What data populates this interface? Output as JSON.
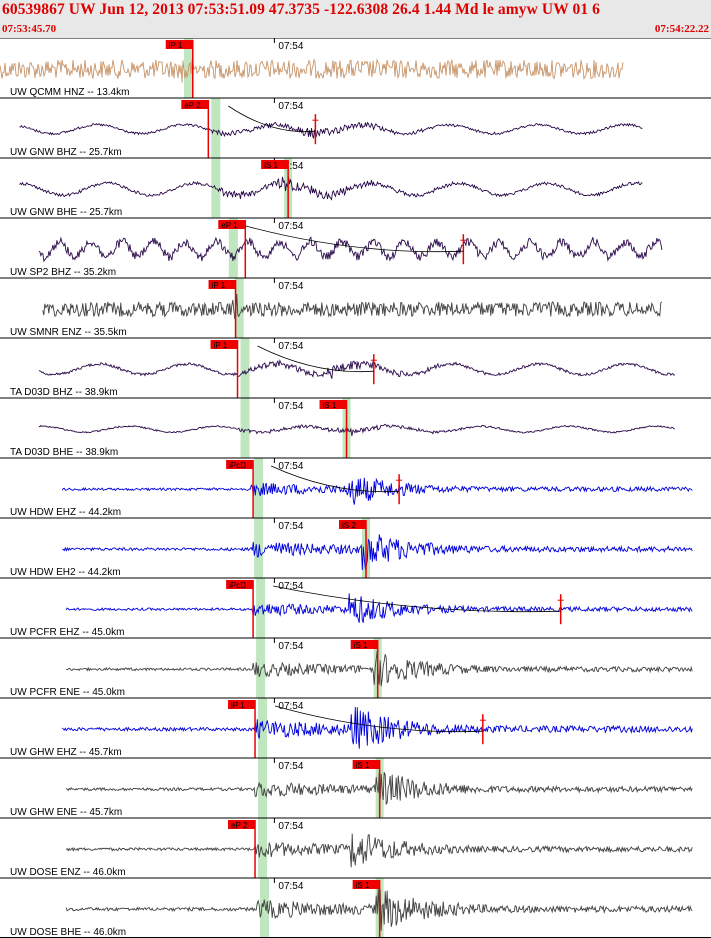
{
  "header": {
    "title": "60539867 UW Jun 12, 2013 07:53:51.09   47.3735 -122.6308 26.4 1.44 Md le amyw UW 01   6",
    "start_time": "07:53:45.70",
    "end_time": "07:54:22.22",
    "minute_tick": "07:54"
  },
  "colors": {
    "header_bg": "#e8e8e8",
    "header_text": "#dd0000",
    "pick": "#ee0000",
    "gap_band": "#bfe6bf",
    "tan": "#c8956a",
    "purple": "#2a0a4a",
    "gray": "#404040",
    "blue": "#0000dd"
  },
  "chart_data": {
    "type": "seismogram",
    "x_range_seconds": [
      0,
      36.52
    ],
    "minute_mark_seconds": 14.3,
    "traces": [
      {
        "label": "UW QCMM HNZ -- 13.4km",
        "color": "tan",
        "style": "noise",
        "t0": 0,
        "t1": 32.0,
        "amp": 0.45,
        "arr": 9.3,
        "picks": [
          {
            "text": "iP 1",
            "t": 9.9
          }
        ]
      },
      {
        "label": "UW GNW BHZ -- 25.7km",
        "color": "purple",
        "style": "swell",
        "t0": 1.0,
        "t1": 33.0,
        "amp": 0.3,
        "arr": 10.7,
        "picks": [
          {
            "text": "eP 2",
            "t": 10.7
          },
          {
            "text": "",
            "t": 16.2
          }
        ]
      },
      {
        "label": "UW GNW BHE -- 25.7km",
        "color": "purple",
        "style": "swell",
        "t0": 1.0,
        "t1": 33.0,
        "amp": 0.4,
        "arr": 10.7,
        "picks": [
          {
            "text": "iS 1",
            "t": 14.8
          }
        ]
      },
      {
        "label": "UW SP2 BHZ -- 35.2km",
        "color": "purple",
        "style": "wiggle",
        "t0": 2.0,
        "t1": 34.0,
        "amp": 0.5,
        "arr": 11.6,
        "picks": [
          {
            "text": "eP 1",
            "t": 12.6
          },
          {
            "text": "",
            "t": 23.8
          }
        ]
      },
      {
        "label": "UW SMNR ENZ -- 35.5km",
        "color": "gray",
        "style": "noise",
        "t0": 2.2,
        "t1": 34.0,
        "amp": 0.35,
        "arr": 11.9,
        "picks": [
          {
            "text": "iP 1",
            "t": 12.1
          }
        ]
      },
      {
        "label": "TA D03D BHZ -- 38.9km",
        "color": "purple",
        "style": "swell",
        "t0": 2.0,
        "t1": 34.7,
        "amp": 0.35,
        "arr": 12.2,
        "picks": [
          {
            "text": "iP 1",
            "t": 12.2
          },
          {
            "text": "",
            "t": 19.2
          }
        ]
      },
      {
        "label": "TA D03D BHE -- 38.9km",
        "color": "purple",
        "style": "swell",
        "t0": 2.0,
        "t1": 34.7,
        "amp": 0.2,
        "arr": 12.2,
        "picks": [
          {
            "text": "iS 1",
            "t": 17.8
          }
        ]
      },
      {
        "label": "UW HDW EHZ -- 44.2km",
        "color": "blue",
        "style": "quake",
        "t0": 3.2,
        "t1": 35.6,
        "amp": 0.5,
        "arr": 12.9,
        "picks": [
          {
            "text": "iPcD",
            "t": 13.0
          },
          {
            "text": "",
            "t": 20.5
          }
        ]
      },
      {
        "label": "UW HDW EH2 -- 44.2km",
        "color": "blue",
        "style": "quake",
        "t0": 3.2,
        "t1": 35.6,
        "amp": 0.6,
        "arr": 12.9,
        "picks": [
          {
            "text": "iS 2",
            "t": 18.8
          }
        ]
      },
      {
        "label": "UW PCFR EHZ -- 45.0km",
        "color": "blue",
        "style": "quake",
        "t0": 3.4,
        "t1": 35.6,
        "amp": 0.5,
        "arr": 13.0,
        "picks": [
          {
            "text": "iPcD",
            "t": 13.0
          },
          {
            "text": "",
            "t": 28.8
          }
        ]
      },
      {
        "label": "UW PCFR ENE -- 45.0km",
        "color": "gray",
        "style": "quake",
        "t0": 3.4,
        "t1": 35.6,
        "amp": 0.55,
        "arr": 13.0,
        "picks": [
          {
            "text": "iS 1",
            "t": 19.4
          }
        ]
      },
      {
        "label": "UW GHW EHZ -- 45.7km",
        "color": "blue",
        "style": "quake",
        "t0": 3.2,
        "t1": 35.6,
        "amp": 0.7,
        "arr": 13.1,
        "picks": [
          {
            "text": "iP 1",
            "t": 13.1
          },
          {
            "text": "",
            "t": 24.8
          }
        ]
      },
      {
        "label": "UW GHW ENE -- 45.7km",
        "color": "gray",
        "style": "quake",
        "t0": 3.4,
        "t1": 35.6,
        "amp": 0.6,
        "arr": 13.1,
        "picks": [
          {
            "text": "iS 1",
            "t": 19.5
          }
        ]
      },
      {
        "label": "UW DOSE ENZ -- 46.0km",
        "color": "gray",
        "style": "quake",
        "t0": 3.4,
        "t1": 35.6,
        "amp": 0.6,
        "arr": 13.1,
        "picks": [
          {
            "text": "eP 2",
            "t": 13.1
          }
        ]
      },
      {
        "label": "UW DOSE BHE -- 46.0km",
        "color": "gray",
        "style": "quake",
        "t0": 3.4,
        "t1": 35.6,
        "amp": 0.7,
        "arr": 13.2,
        "picks": [
          {
            "text": "iS 1",
            "t": 19.5
          }
        ]
      }
    ]
  }
}
